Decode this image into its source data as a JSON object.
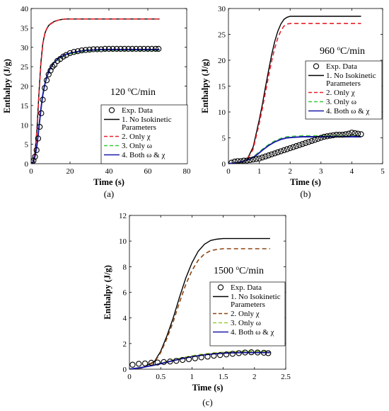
{
  "chart_data": [
    {
      "type": "line",
      "caption": "(a)",
      "annotation": "120 °C/min",
      "annotation_parts": [
        "120 ",
        "o",
        "C/min"
      ],
      "xlabel": "Time (s)",
      "ylabel": "Enthalpy (J/g)",
      "xlim": [
        0,
        80
      ],
      "ylim": [
        0,
        40
      ],
      "xticks": [
        0,
        20,
        40,
        60,
        80
      ],
      "yticks": [
        0,
        5,
        10,
        15,
        20,
        25,
        30,
        35,
        40
      ],
      "grid": false,
      "legend_position": "lower-right",
      "series": [
        {
          "name": "Exp. Data",
          "style": "marker",
          "color": "#000000",
          "x": [
            0.5,
            1.2,
            2,
            2.8,
            3.6,
            4.4,
            5.2,
            6,
            7,
            8,
            9,
            10,
            11,
            12,
            13.5,
            15,
            16.5,
            18,
            20,
            22,
            24,
            26,
            28,
            30,
            32,
            34,
            36,
            38,
            40,
            42,
            44,
            46,
            48,
            50,
            52,
            54,
            56,
            58,
            60,
            62,
            64,
            65.5
          ],
          "y": [
            0.3,
            0.8,
            1.8,
            3.5,
            6.5,
            9.5,
            13,
            16.5,
            19.5,
            21.5,
            23,
            24,
            25,
            25.5,
            26.5,
            27,
            27.6,
            28,
            28.5,
            28.8,
            29,
            29.2,
            29.3,
            29.4,
            29.5,
            29.5,
            29.5,
            29.6,
            29.6,
            29.6,
            29.6,
            29.6,
            29.6,
            29.6,
            29.6,
            29.6,
            29.6,
            29.6,
            29.6,
            29.6,
            29.6,
            29.6
          ]
        },
        {
          "name": "1. No Isokinetic Parameters",
          "name_lines": [
            "1. No Isokinetic",
            "Parameters"
          ],
          "style": "solid",
          "color": "#000000",
          "x": [
            0,
            1,
            2,
            3,
            4,
            5,
            6,
            7,
            8,
            9,
            10,
            12,
            14,
            16,
            18,
            20,
            30,
            40,
            50,
            60,
            66
          ],
          "y": [
            0,
            0.6,
            3,
            9,
            18,
            26,
            31,
            33.5,
            34.8,
            35.6,
            36.1,
            36.7,
            37.0,
            37.2,
            37.3,
            37.3,
            37.3,
            37.3,
            37.3,
            37.3,
            37.3
          ]
        },
        {
          "name": "2. Only χ",
          "style": "dashed",
          "color": "#e8202a",
          "x": [
            0,
            1,
            2,
            3,
            4,
            5,
            6,
            7,
            8,
            9,
            10,
            12,
            14,
            16,
            18,
            20,
            30,
            40,
            50,
            60,
            66
          ],
          "y": [
            0,
            0.5,
            2.8,
            8.5,
            17.5,
            25.5,
            30.8,
            33.4,
            34.7,
            35.5,
            36.0,
            36.6,
            37.0,
            37.2,
            37.3,
            37.3,
            37.3,
            37.3,
            37.3,
            37.3,
            37.3
          ]
        },
        {
          "name": "3. Only ω",
          "style": "dashed",
          "color": "#3cc83c",
          "x": [
            0,
            1,
            2,
            3,
            4,
            5,
            6,
            7,
            8,
            9,
            10,
            12,
            14,
            16,
            18,
            20,
            24,
            28,
            32,
            36,
            40,
            50,
            60,
            66
          ],
          "y": [
            0,
            0.4,
            1.8,
            4.6,
            9,
            13.8,
            17.5,
            20.2,
            22.1,
            23.5,
            24.6,
            26.0,
            26.9,
            27.5,
            28.0,
            28.3,
            28.7,
            29.0,
            29.1,
            29.2,
            29.2,
            29.2,
            29.2,
            29.2
          ]
        },
        {
          "name": "4. Both ω & χ",
          "style": "solid",
          "color": "#1a1aa8",
          "x": [
            0,
            1,
            2,
            3,
            4,
            5,
            6,
            7,
            8,
            9,
            10,
            12,
            14,
            16,
            18,
            20,
            24,
            28,
            32,
            36,
            40,
            50,
            60,
            66
          ],
          "y": [
            0,
            0.4,
            1.9,
            4.8,
            9.3,
            14,
            17.8,
            20.4,
            22.3,
            23.7,
            24.8,
            26.2,
            27.1,
            27.7,
            28.2,
            28.5,
            28.9,
            29.2,
            29.3,
            29.4,
            29.4,
            29.4,
            29.4,
            29.4
          ]
        }
      ]
    },
    {
      "type": "line",
      "caption": "(b)",
      "annotation": "960 °C/min",
      "annotation_parts": [
        "960 ",
        "o",
        "C/min"
      ],
      "xlabel": "Time (s)",
      "ylabel": "Enthalpy (J/g)",
      "xlim": [
        0,
        5
      ],
      "ylim": [
        0,
        30
      ],
      "xticks": [
        0,
        1,
        2,
        3,
        4,
        5
      ],
      "yticks": [
        0,
        5,
        10,
        15,
        20,
        25,
        30
      ],
      "grid": false,
      "legend_position": "right",
      "series": [
        {
          "name": "Exp. Data",
          "style": "marker",
          "color": "#000000",
          "x": [
            0.1,
            0.2,
            0.3,
            0.4,
            0.5,
            0.6,
            0.7,
            0.8,
            0.9,
            1.0,
            1.1,
            1.2,
            1.3,
            1.4,
            1.5,
            1.6,
            1.7,
            1.8,
            1.9,
            2.0,
            2.1,
            2.2,
            2.3,
            2.4,
            2.5,
            2.6,
            2.7,
            2.8,
            2.9,
            3.0,
            3.1,
            3.2,
            3.3,
            3.4,
            3.5,
            3.6,
            3.7,
            3.8,
            3.9,
            4.0,
            4.1,
            4.2,
            4.3
          ],
          "y": [
            0.2,
            0.4,
            0.5,
            0.5,
            0.6,
            0.6,
            0.7,
            0.8,
            0.9,
            1.0,
            1.2,
            1.4,
            1.6,
            1.8,
            2.0,
            2.2,
            2.4,
            2.6,
            2.8,
            3.0,
            3.2,
            3.4,
            3.6,
            3.8,
            4.0,
            4.2,
            4.4,
            4.6,
            4.8,
            5.0,
            5.2,
            5.3,
            5.4,
            5.5,
            5.6,
            5.6,
            5.6,
            5.7,
            5.8,
            6.0,
            5.9,
            5.8,
            5.7
          ]
        },
        {
          "name": "1. No Isokinetic Parameters",
          "name_lines": [
            "1. No Isokinetic",
            "Parameters"
          ],
          "style": "solid",
          "color": "#000000",
          "x": [
            0,
            0.4,
            0.6,
            0.8,
            1.0,
            1.1,
            1.2,
            1.3,
            1.4,
            1.5,
            1.6,
            1.7,
            1.8,
            1.9,
            2.0,
            2.1,
            2.3,
            3.0,
            4.0,
            4.3
          ],
          "y": [
            0,
            0.2,
            0.8,
            3.2,
            8.5,
            11.5,
            14.8,
            18,
            21,
            23.6,
            25.6,
            27,
            27.9,
            28.3,
            28.5,
            28.5,
            28.5,
            28.5,
            28.5,
            28.5
          ]
        },
        {
          "name": "2. Only χ",
          "style": "dashed",
          "color": "#e8202a",
          "x": [
            0,
            0.4,
            0.6,
            0.8,
            1.0,
            1.1,
            1.2,
            1.3,
            1.4,
            1.5,
            1.6,
            1.7,
            1.8,
            1.9,
            2.0,
            2.1,
            2.3,
            3.0,
            4.0,
            4.3
          ],
          "y": [
            0,
            0.2,
            0.7,
            2.8,
            7.8,
            10.7,
            13.8,
            16.9,
            19.8,
            22.3,
            24.3,
            25.7,
            26.6,
            27.0,
            27.1,
            27.1,
            27.1,
            27.1,
            27.1,
            27.1
          ]
        },
        {
          "name": "3. Only ω",
          "style": "dashed",
          "color": "#3cc83c",
          "x": [
            0,
            0.3,
            0.5,
            0.7,
            0.9,
            1.1,
            1.3,
            1.5,
            1.7,
            1.9,
            2.1,
            2.4,
            2.8,
            3.2,
            3.6,
            4.0,
            4.3
          ],
          "y": [
            0,
            0.2,
            0.5,
            1.0,
            1.8,
            2.8,
            3.7,
            4.4,
            4.9,
            5.2,
            5.3,
            5.4,
            5.4,
            5.4,
            5.4,
            5.4,
            5.4
          ]
        },
        {
          "name": "4. Both ω & χ",
          "style": "solid",
          "color": "#1a1aa8",
          "x": [
            0,
            0.3,
            0.5,
            0.7,
            0.9,
            1.1,
            1.3,
            1.5,
            1.7,
            1.9,
            2.1,
            2.4,
            2.8,
            3.2,
            3.6,
            4.0,
            4.3
          ],
          "y": [
            0,
            0.2,
            0.5,
            0.9,
            1.6,
            2.6,
            3.5,
            4.2,
            4.7,
            5.0,
            5.1,
            5.2,
            5.2,
            5.2,
            5.2,
            5.2,
            5.2
          ]
        }
      ]
    },
    {
      "type": "line",
      "caption": "(c)",
      "annotation": "1500 °C/min",
      "annotation_parts": [
        "1500 ",
        "o",
        "C/min"
      ],
      "xlabel": "Time (s)",
      "ylabel": "Enthalpy (J/g)",
      "xlim": [
        0,
        2.5
      ],
      "ylim": [
        0,
        12
      ],
      "xticks": [
        0,
        0.5,
        1,
        1.5,
        2,
        2.5
      ],
      "yticks": [
        0,
        2,
        4,
        6,
        8,
        10,
        12
      ],
      "grid": false,
      "legend_position": "right",
      "series": [
        {
          "name": "Exp. Data",
          "style": "marker",
          "color": "#000000",
          "x": [
            0.05,
            0.15,
            0.25,
            0.35,
            0.45,
            0.55,
            0.65,
            0.75,
            0.85,
            0.95,
            1.05,
            1.15,
            1.25,
            1.35,
            1.45,
            1.55,
            1.65,
            1.75,
            1.85,
            1.95,
            2.05,
            2.15,
            2.22
          ],
          "y": [
            0.35,
            0.42,
            0.45,
            0.5,
            0.52,
            0.56,
            0.6,
            0.65,
            0.72,
            0.78,
            0.85,
            0.92,
            0.98,
            1.05,
            1.1,
            1.15,
            1.2,
            1.25,
            1.3,
            1.32,
            1.3,
            1.28,
            1.25
          ]
        },
        {
          "name": "1. No Isokinetic Parameters",
          "name_lines": [
            "1. No Isokinetic",
            "Parameters"
          ],
          "style": "solid",
          "color": "#000000",
          "x": [
            0,
            0.2,
            0.4,
            0.5,
            0.6,
            0.7,
            0.8,
            0.9,
            1.0,
            1.1,
            1.2,
            1.3,
            1.4,
            1.5,
            1.6,
            2.0,
            2.25
          ],
          "y": [
            0,
            0.1,
            0.6,
            1.4,
            2.6,
            4.0,
            5.6,
            7.1,
            8.3,
            9.2,
            9.75,
            10.05,
            10.15,
            10.2,
            10.2,
            10.2,
            10.2
          ]
        },
        {
          "name": "2. Only χ",
          "style": "dashed",
          "color": "#8b4513",
          "x": [
            0,
            0.2,
            0.4,
            0.5,
            0.6,
            0.7,
            0.8,
            0.9,
            1.0,
            1.1,
            1.2,
            1.3,
            1.4,
            1.5,
            1.6,
            2.0,
            2.25
          ],
          "y": [
            0,
            0.1,
            0.55,
            1.3,
            2.4,
            3.7,
            5.2,
            6.6,
            7.7,
            8.5,
            9.0,
            9.25,
            9.35,
            9.4,
            9.4,
            9.4,
            9.4
          ]
        },
        {
          "name": "3. Only ω",
          "style": "dashed",
          "color": "#9acd32",
          "x": [
            0,
            0.2,
            0.4,
            0.6,
            0.8,
            1.0,
            1.2,
            1.4,
            1.6,
            1.8,
            2.0,
            2.25
          ],
          "y": [
            0,
            0.15,
            0.35,
            0.6,
            0.85,
            1.05,
            1.2,
            1.3,
            1.35,
            1.4,
            1.4,
            1.4
          ]
        },
        {
          "name": "4. Both ω & χ",
          "style": "solid",
          "color": "#1a1aa8",
          "x": [
            0,
            0.2,
            0.4,
            0.6,
            0.8,
            1.0,
            1.2,
            1.4,
            1.6,
            1.8,
            2.0,
            2.25
          ],
          "y": [
            0,
            0.13,
            0.32,
            0.55,
            0.78,
            0.98,
            1.12,
            1.22,
            1.27,
            1.3,
            1.3,
            1.3
          ]
        }
      ]
    }
  ]
}
